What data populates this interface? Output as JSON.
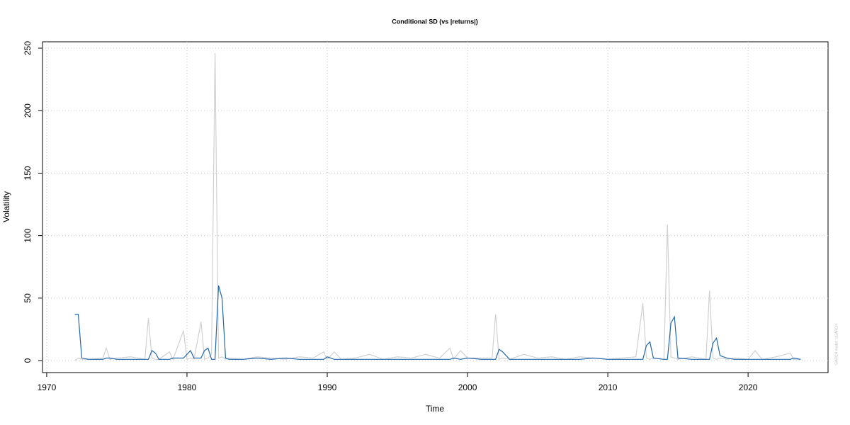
{
  "chart_data": {
    "type": "line",
    "title": "Conditional SD (vs |returns|)",
    "x_label": "Time",
    "y_label": "Volatility",
    "watermark": "GARCH model : sGARCH",
    "x": [
      1972,
      1972.25,
      1972.5,
      1973,
      1974,
      1974.25,
      1974.5,
      1975,
      1976,
      1977,
      1977.25,
      1977.5,
      1977.75,
      1978,
      1978.75,
      1979,
      1979.75,
      1980,
      1980.25,
      1980.5,
      1981,
      1981.25,
      1981.5,
      1981.75,
      1982,
      1982.25,
      1982.5,
      1982.75,
      1983,
      1984,
      1985,
      1986,
      1987,
      1988,
      1989,
      1989.75,
      1990,
      1990.5,
      1991,
      1992,
      1993,
      1994,
      1995,
      1996,
      1997,
      1998,
      1998.75,
      1999,
      1999.5,
      2000,
      2001,
      2001.75,
      2002,
      2002.25,
      2002.5,
      2003,
      2004,
      2005,
      2006,
      2007,
      2008,
      2009,
      2010,
      2011,
      2012,
      2012.5,
      2012.75,
      2013,
      2013.25,
      2014,
      2014.25,
      2014.5,
      2014.75,
      2015,
      2016,
      2017,
      2017.25,
      2017.5,
      2017.75,
      2018,
      2018.5,
      2019,
      2020,
      2020.5,
      2021,
      2022,
      2023,
      2023.25,
      2023.75
    ],
    "series": [
      {
        "color": "#d0d0d0",
        "values": [
          0,
          2,
          1,
          1,
          2,
          10,
          1,
          2,
          3,
          1,
          34,
          2,
          1,
          1,
          7,
          1,
          24,
          1,
          2,
          1,
          31,
          1,
          2,
          5,
          246,
          2,
          3,
          1,
          2,
          1,
          3,
          2,
          1,
          3,
          2,
          7,
          1,
          7,
          1,
          2,
          5,
          1,
          3,
          2,
          5,
          2,
          10,
          1,
          8,
          2,
          2,
          2,
          37,
          1,
          2,
          1,
          5,
          2,
          3,
          1,
          3,
          2,
          1,
          2,
          3,
          46,
          2,
          1,
          2,
          1,
          109,
          3,
          2,
          1,
          3,
          1,
          56,
          2,
          1,
          2,
          1,
          2,
          1,
          8,
          1,
          3,
          6,
          1,
          1
        ]
      },
      {
        "color": "#2166ac",
        "values": [
          37,
          37,
          2,
          1,
          1,
          2,
          2,
          1,
          1,
          1,
          1,
          8,
          6,
          1,
          1,
          2,
          2,
          5,
          8,
          2,
          2,
          8,
          10,
          1,
          1,
          60,
          50,
          2,
          1,
          1,
          2,
          1,
          2,
          1,
          1,
          1,
          3,
          1,
          1,
          1,
          1,
          1,
          1,
          1,
          1,
          1,
          1,
          2,
          1,
          2,
          1,
          1,
          1,
          9,
          7,
          1,
          1,
          1,
          1,
          1,
          1,
          2,
          1,
          1,
          1,
          1,
          12,
          15,
          2,
          1,
          1,
          30,
          35,
          2,
          1,
          1,
          1,
          14,
          18,
          4,
          2,
          1,
          1,
          1,
          1,
          1,
          1,
          2,
          1
        ]
      }
    ],
    "xlim": [
      1969.7,
      2025.7
    ],
    "ylim": [
      -9.6,
      255.1
    ],
    "xticks": [
      1970,
      1980,
      1990,
      2000,
      2010,
      2020
    ],
    "yticks": [
      0,
      50,
      100,
      150,
      200,
      250
    ],
    "grid": true
  }
}
